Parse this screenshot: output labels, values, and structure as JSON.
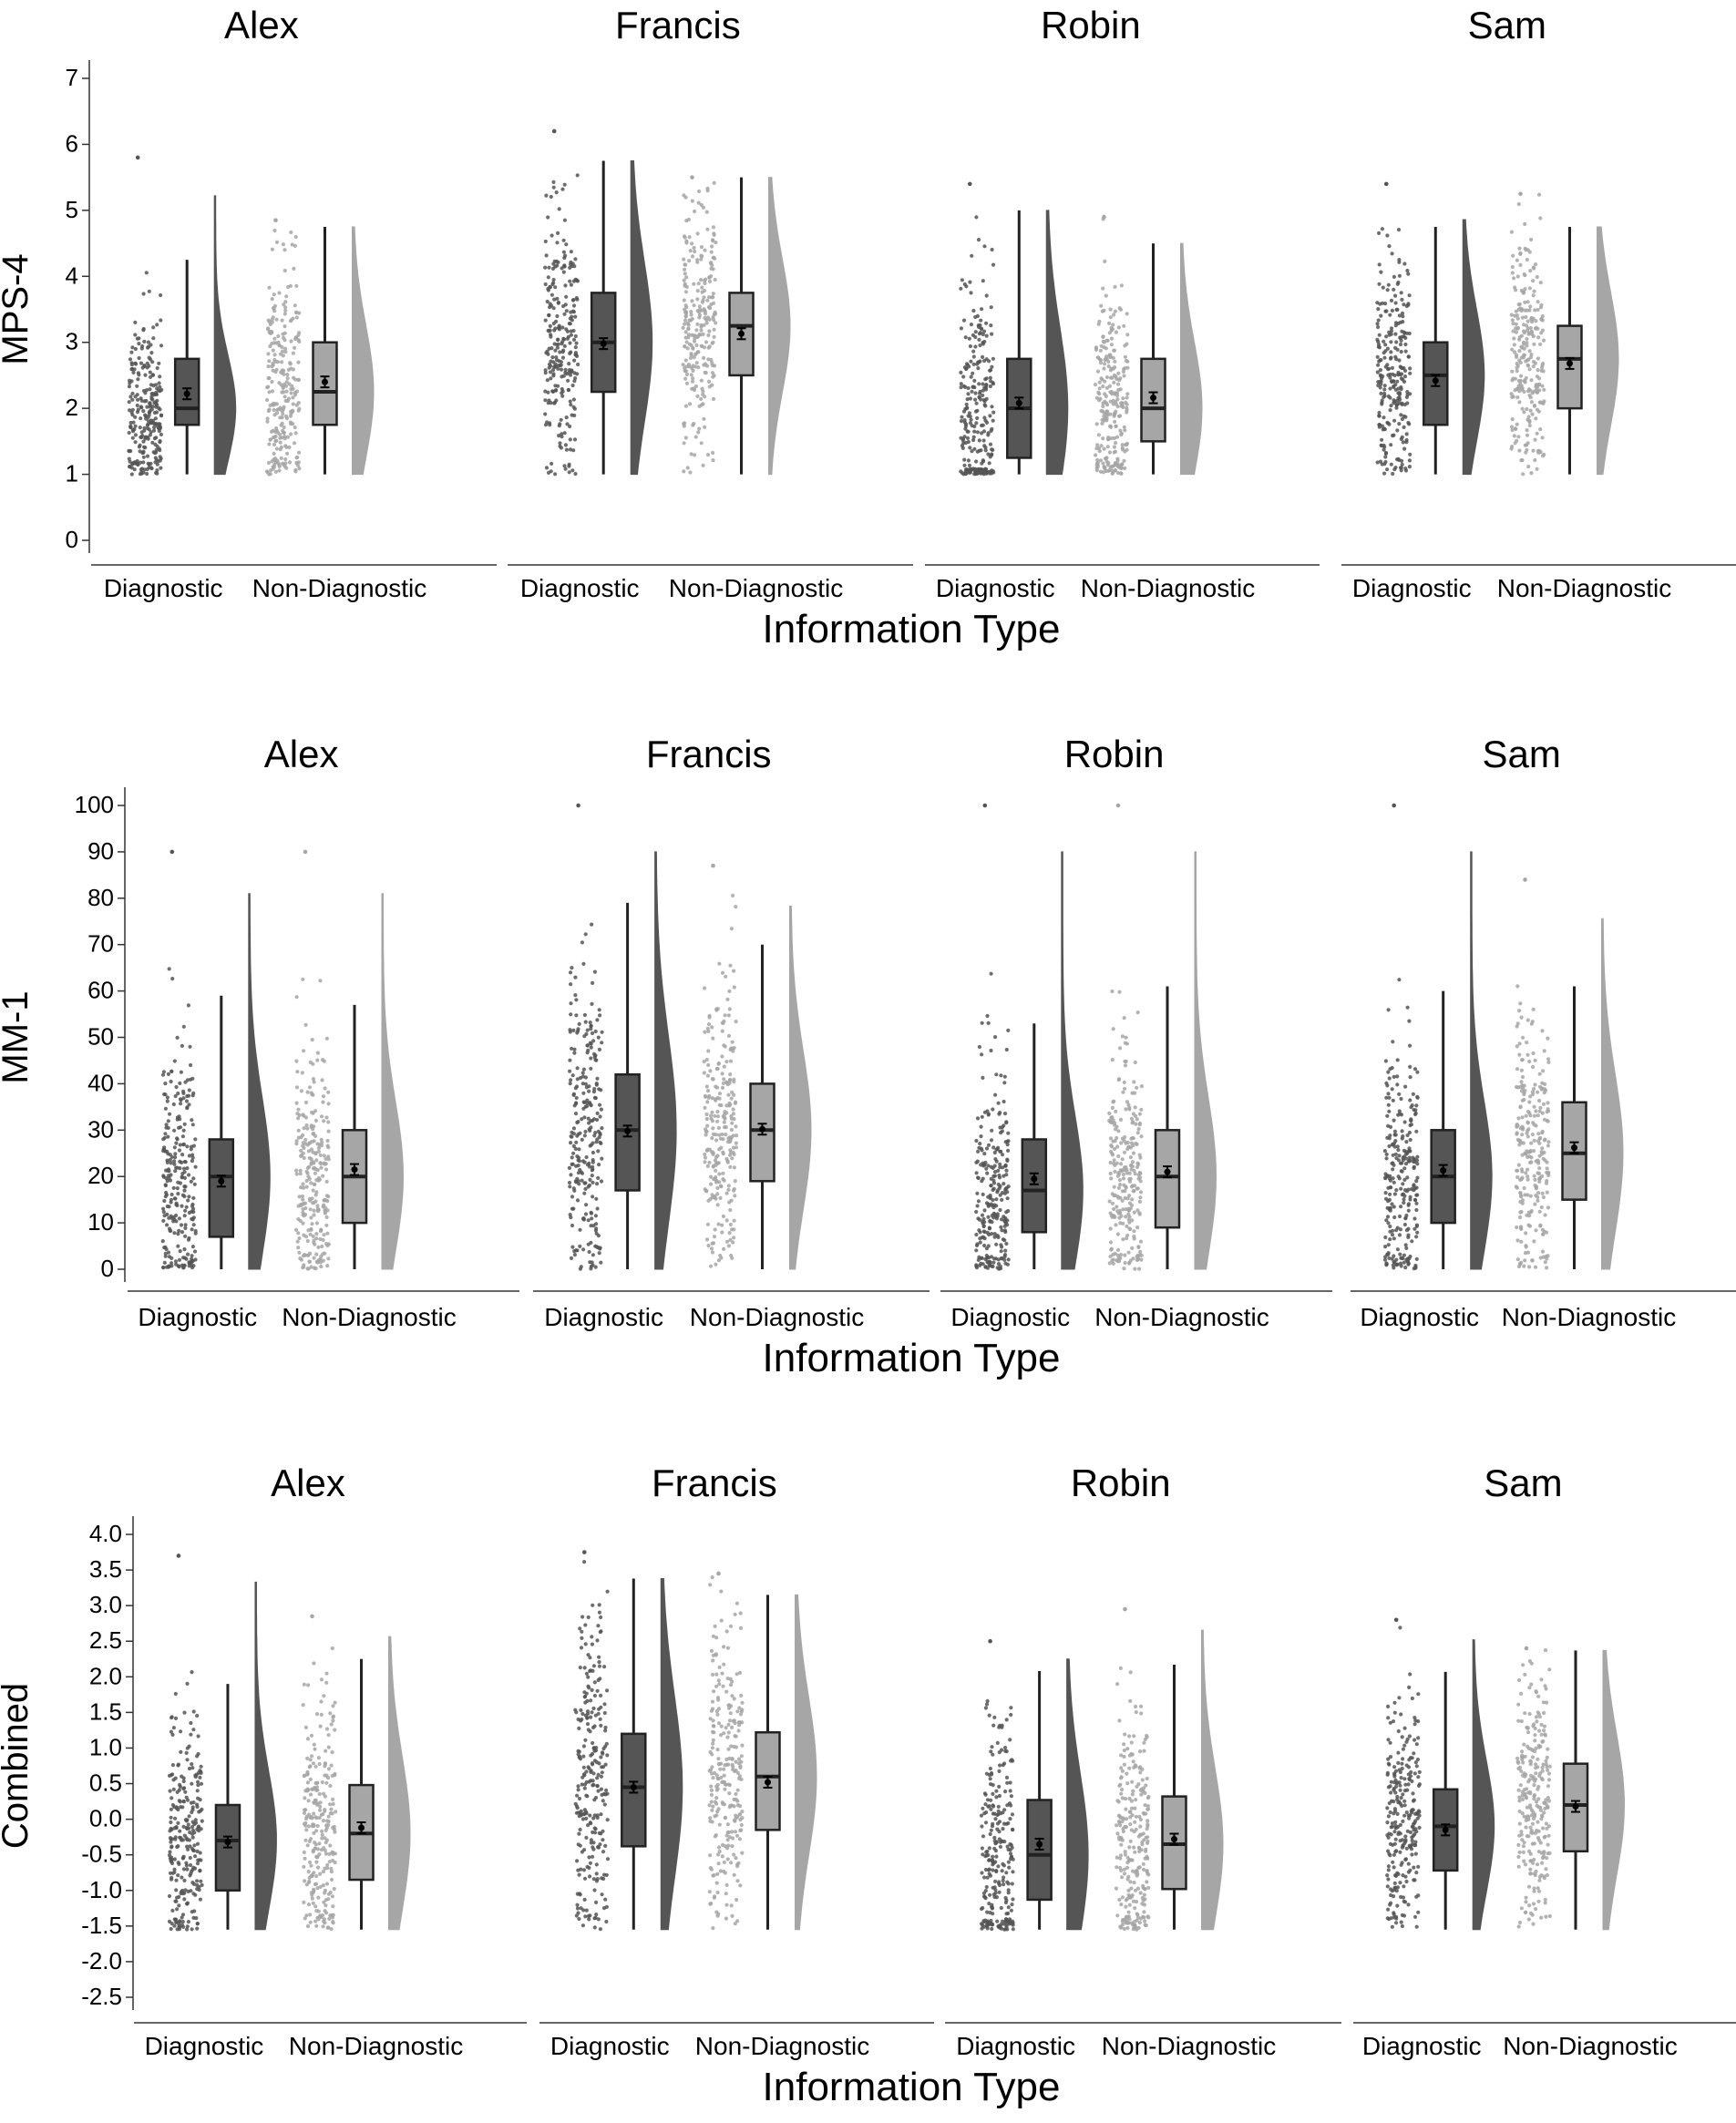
{
  "colors": {
    "diagnostic": "#555555",
    "non_diagnostic": "#a6a6a6",
    "axis": "#333333"
  },
  "chart_data": [
    {
      "type": "raincloud",
      "ylabel": "MPS-4",
      "xlabel": "Information Type",
      "ylim": [
        0,
        7
      ],
      "yticks": [
        "0",
        "1",
        "2",
        "3",
        "4",
        "5",
        "6",
        "7"
      ],
      "categories": [
        "Diagnostic",
        "Non-Diagnostic"
      ],
      "panels": [
        {
          "name": "Alex",
          "groups": [
            {
              "category": "Diagnostic",
              "q1": 1.75,
              "median": 2.0,
              "q3": 2.75,
              "lower": 1.0,
              "upper": 4.25,
              "mean": 2.22,
              "max_point": 5.8
            },
            {
              "category": "Non-Diagnostic",
              "q1": 1.75,
              "median": 2.25,
              "q3": 3.0,
              "lower": 1.0,
              "upper": 4.75,
              "mean": 2.4,
              "max_point": 4.85
            }
          ]
        },
        {
          "name": "Francis",
          "groups": [
            {
              "category": "Diagnostic",
              "q1": 2.25,
              "median": 3.0,
              "q3": 3.75,
              "lower": 1.0,
              "upper": 5.75,
              "mean": 2.98,
              "max_point": 6.2
            },
            {
              "category": "Non-Diagnostic",
              "q1": 2.5,
              "median": 3.25,
              "q3": 3.75,
              "lower": 1.0,
              "upper": 5.5,
              "mean": 3.13,
              "max_point": 5.5
            }
          ]
        },
        {
          "name": "Robin",
          "groups": [
            {
              "category": "Diagnostic",
              "q1": 1.25,
              "median": 2.0,
              "q3": 2.75,
              "lower": 1.0,
              "upper": 5.0,
              "mean": 2.08,
              "max_point": 5.4
            },
            {
              "category": "Non-Diagnostic",
              "q1": 1.5,
              "median": 2.0,
              "q3": 2.75,
              "lower": 1.0,
              "upper": 4.5,
              "mean": 2.16,
              "max_point": 4.9
            }
          ]
        },
        {
          "name": "Sam",
          "groups": [
            {
              "category": "Diagnostic",
              "q1": 1.75,
              "median": 2.5,
              "q3": 3.0,
              "lower": 1.0,
              "upper": 4.75,
              "mean": 2.42,
              "max_point": 5.4
            },
            {
              "category": "Non-Diagnostic",
              "q1": 2.0,
              "median": 2.75,
              "q3": 3.25,
              "lower": 1.0,
              "upper": 4.75,
              "mean": 2.68,
              "max_point": 5.25
            }
          ]
        }
      ]
    },
    {
      "type": "raincloud",
      "ylabel": "MM-1",
      "xlabel": "Information Type",
      "ylim": [
        0,
        100
      ],
      "yticks": [
        "0",
        "10",
        "20",
        "30",
        "40",
        "50",
        "60",
        "70",
        "80",
        "90",
        "100"
      ],
      "categories": [
        "Diagnostic",
        "Non-Diagnostic"
      ],
      "panels": [
        {
          "name": "Alex",
          "groups": [
            {
              "category": "Diagnostic",
              "q1": 7,
              "median": 20,
              "q3": 28,
              "lower": 0,
              "upper": 59,
              "mean": 19,
              "max_point": 90
            },
            {
              "category": "Non-Diagnostic",
              "q1": 10,
              "median": 20,
              "q3": 30,
              "lower": 0,
              "upper": 57,
              "mean": 21.5,
              "max_point": 90
            }
          ]
        },
        {
          "name": "Francis",
          "groups": [
            {
              "category": "Diagnostic",
              "q1": 17,
              "median": 30,
              "q3": 42,
              "lower": 0,
              "upper": 79,
              "mean": 29.8,
              "max_point": 100
            },
            {
              "category": "Non-Diagnostic",
              "q1": 19,
              "median": 30,
              "q3": 40,
              "lower": 0,
              "upper": 70,
              "mean": 30.2,
              "max_point": 87
            }
          ]
        },
        {
          "name": "Robin",
          "groups": [
            {
              "category": "Diagnostic",
              "q1": 8,
              "median": 17,
              "q3": 28,
              "lower": 0,
              "upper": 53,
              "mean": 19.5,
              "max_point": 100
            },
            {
              "category": "Non-Diagnostic",
              "q1": 9,
              "median": 20,
              "q3": 30,
              "lower": 0,
              "upper": 61,
              "mean": 21,
              "max_point": 100
            }
          ]
        },
        {
          "name": "Sam",
          "groups": [
            {
              "category": "Diagnostic",
              "q1": 10,
              "median": 20,
              "q3": 30,
              "lower": 0,
              "upper": 60,
              "mean": 21.3,
              "max_point": 100
            },
            {
              "category": "Non-Diagnostic",
              "q1": 15,
              "median": 25,
              "q3": 36,
              "lower": 0,
              "upper": 61,
              "mean": 26.2,
              "max_point": 84
            }
          ]
        }
      ]
    },
    {
      "type": "raincloud",
      "ylabel": "Combined",
      "xlabel": "Information Type",
      "ylim": [
        -2.5,
        4.0
      ],
      "yticks": [
        "-2.5",
        "-2.0",
        "-1.5",
        "-1.0",
        "-0.5",
        "0.0",
        "0.5",
        "1.0",
        "1.5",
        "2.0",
        "2.5",
        "3.0",
        "3.5",
        "4.0"
      ],
      "categories": [
        "Diagnostic",
        "Non-Diagnostic"
      ],
      "panels": [
        {
          "name": "Alex",
          "groups": [
            {
              "category": "Diagnostic",
              "q1": -1.0,
              "median": -0.3,
              "q3": 0.2,
              "lower": -1.55,
              "upper": 1.9,
              "mean": -0.32,
              "max_point": 3.7
            },
            {
              "category": "Non-Diagnostic",
              "q1": -0.85,
              "median": -0.2,
              "q3": 0.48,
              "lower": -1.55,
              "upper": 2.25,
              "mean": -0.12,
              "max_point": 2.85
            }
          ]
        },
        {
          "name": "Francis",
          "groups": [
            {
              "category": "Diagnostic",
              "q1": -0.38,
              "median": 0.45,
              "q3": 1.2,
              "lower": -1.55,
              "upper": 3.38,
              "mean": 0.45,
              "max_point": 3.75
            },
            {
              "category": "Non-Diagnostic",
              "q1": -0.15,
              "median": 0.6,
              "q3": 1.22,
              "lower": -1.55,
              "upper": 3.15,
              "mean": 0.52,
              "max_point": 3.45
            }
          ]
        },
        {
          "name": "Robin",
          "groups": [
            {
              "category": "Diagnostic",
              "q1": -1.13,
              "median": -0.5,
              "q3": 0.27,
              "lower": -1.55,
              "upper": 2.08,
              "mean": -0.35,
              "max_point": 2.5
            },
            {
              "category": "Non-Diagnostic",
              "q1": -0.98,
              "median": -0.35,
              "q3": 0.32,
              "lower": -1.55,
              "upper": 2.17,
              "mean": -0.28,
              "max_point": 2.95
            }
          ]
        },
        {
          "name": "Sam",
          "groups": [
            {
              "category": "Diagnostic",
              "q1": -0.72,
              "median": -0.1,
              "q3": 0.42,
              "lower": -1.55,
              "upper": 2.07,
              "mean": -0.15,
              "max_point": 2.8
            },
            {
              "category": "Non-Diagnostic",
              "q1": -0.45,
              "median": 0.2,
              "q3": 0.78,
              "lower": -1.55,
              "upper": 2.37,
              "mean": 0.18,
              "max_point": 2.4
            }
          ]
        }
      ]
    }
  ]
}
